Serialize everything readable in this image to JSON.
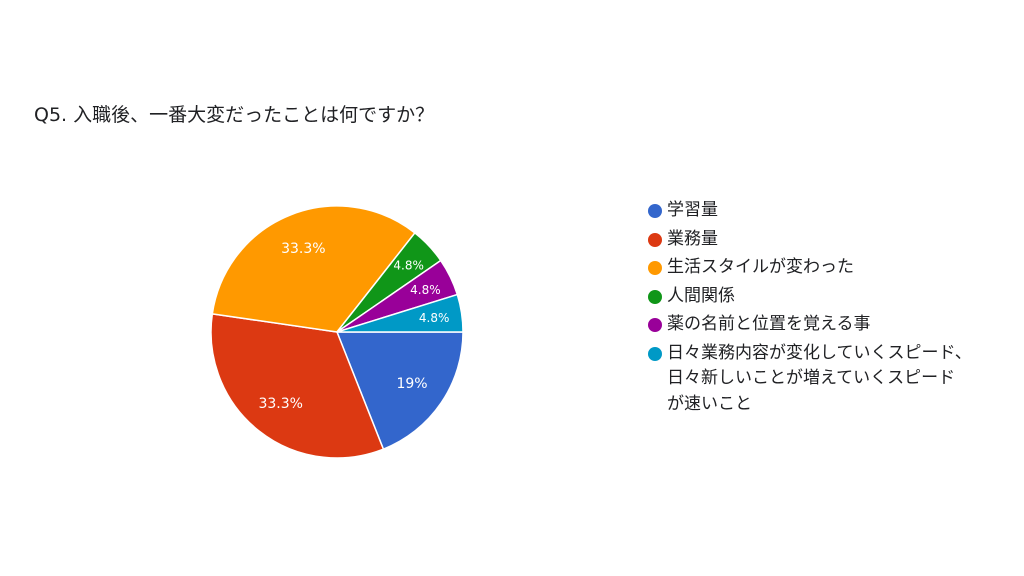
{
  "chart_data": {
    "type": "pie",
    "title": "Q5. 入職後、一番大変だったことは何ですか？",
    "slices": [
      {
        "label": "学習量",
        "value": 19,
        "display": "19%",
        "color": "#3366cc"
      },
      {
        "label": "業務量",
        "value": 33.3,
        "display": "33.3%",
        "color": "#dc3912"
      },
      {
        "label": "生活スタイルが変わった",
        "value": 33.3,
        "display": "33.3%",
        "color": "#ff9900"
      },
      {
        "label": "人間関係",
        "value": 4.8,
        "display": "4.8%",
        "color": "#109618"
      },
      {
        "label": "薬の名前と位置を覚える事",
        "value": 4.8,
        "display": "4.8%",
        "color": "#990099"
      },
      {
        "label": "日々業務内容が変化していくスピード、\n日々新しいことが増えていくスピード\nが速いこと",
        "value": 4.8,
        "display": "4.8%",
        "color": "#0099c6"
      }
    ],
    "legend_position": "right"
  }
}
